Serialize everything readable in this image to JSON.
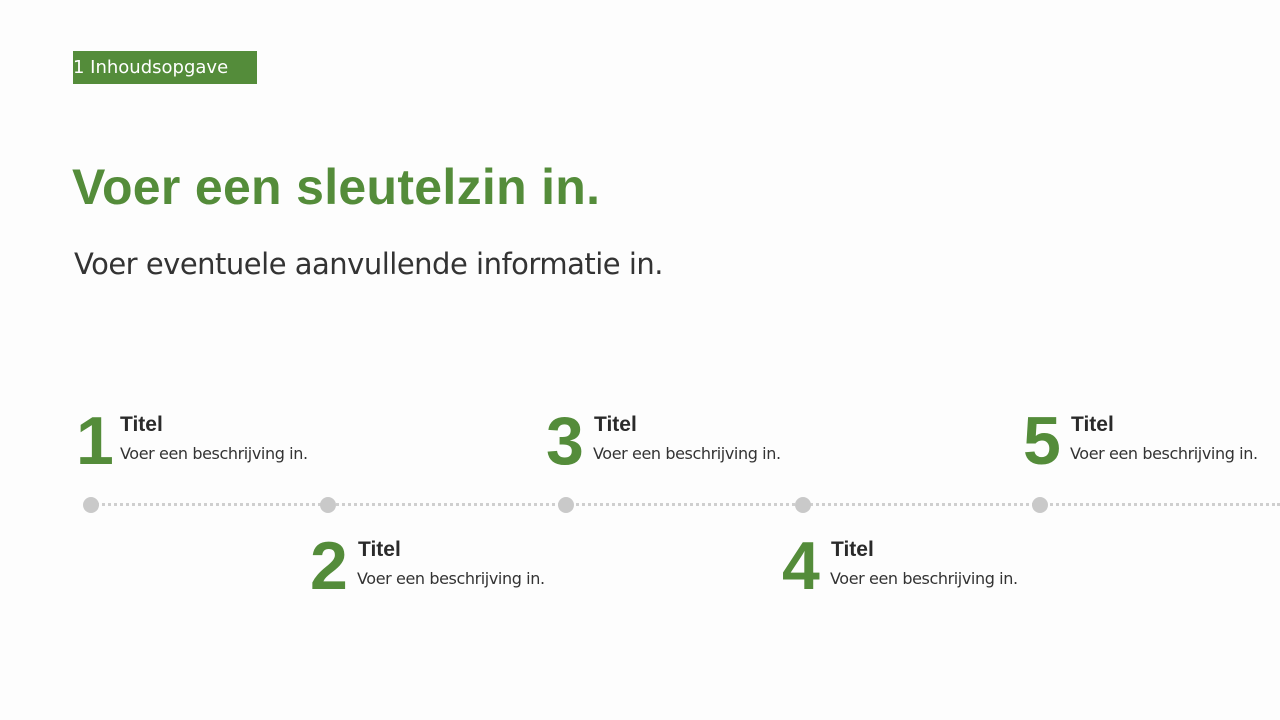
{
  "section_tag": "1 Inhoudsopgave",
  "title": "Voer een sleutelzin in.",
  "subtitle": "Voer eventuele aanvullende informatie in.",
  "accent_color": "#548c3a",
  "timeline": [
    {
      "number": "1",
      "title": "Titel",
      "description": "Voer een beschrijving in."
    },
    {
      "number": "2",
      "title": "Titel",
      "description": "Voer een beschrijving in."
    },
    {
      "number": "3",
      "title": "Titel",
      "description": "Voer een beschrijving in."
    },
    {
      "number": "4",
      "title": "Titel",
      "description": "Voer een beschrijving in."
    },
    {
      "number": "5",
      "title": "Titel",
      "description": "Voer een beschrijving in."
    }
  ]
}
